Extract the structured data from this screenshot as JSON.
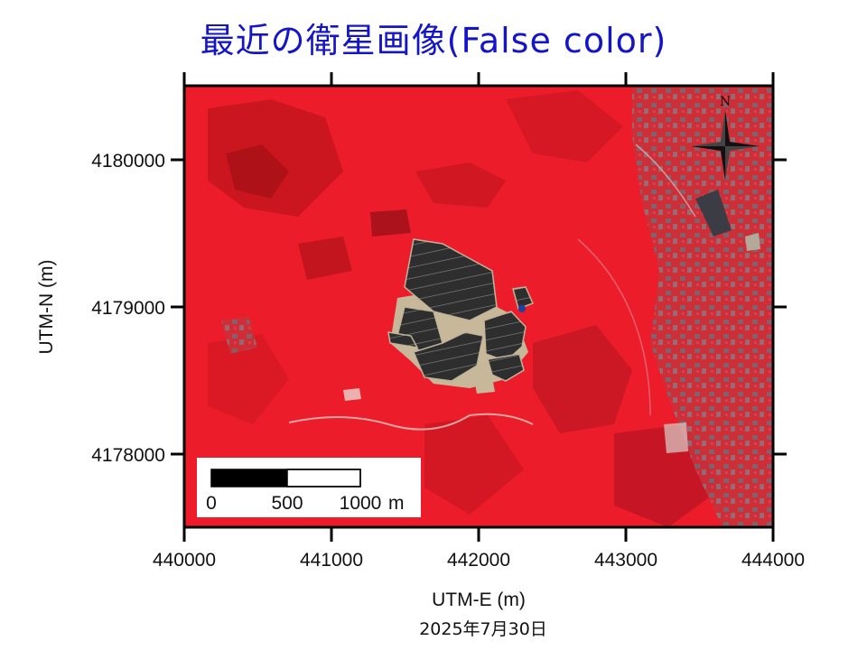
{
  "title": "最近の衛星画像(False color)",
  "date": "2025年7月30日",
  "axes": {
    "x_title": "UTM-E (m)",
    "y_title": "UTM-N (m)",
    "x_ticks": [
      "440000",
      "441000",
      "442000",
      "443000",
      "444000"
    ],
    "y_ticks": [
      "4180000",
      "4179000",
      "4178000"
    ]
  },
  "north_arrow": {
    "label": "N",
    "icon": "north-arrow-compass-icon"
  },
  "scale_bar": {
    "labels": [
      "0",
      "500",
      "1000"
    ],
    "unit": "m"
  },
  "colors": {
    "title": "#1414c8",
    "vegetation": "#ec1c2b",
    "dark_vegetation": "#b8141c",
    "solar_panels": "#2e2e2e",
    "bare_ground": "#c8b89a"
  }
}
